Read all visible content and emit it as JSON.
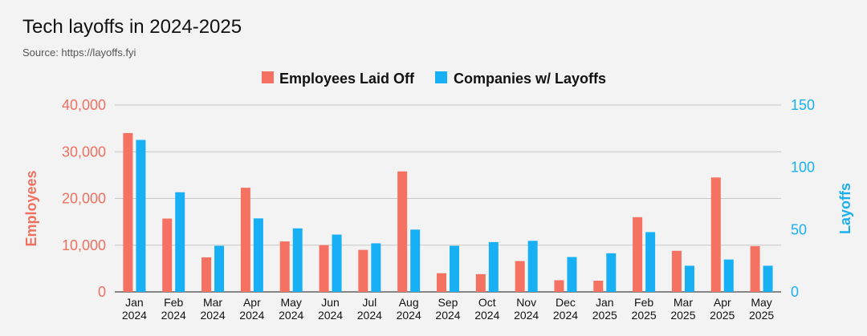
{
  "chart_data": {
    "type": "bar",
    "title": "Tech layoffs in 2024-2025",
    "subtitle": "Source: https://layoffs.fyi",
    "categories": [
      [
        "Jan",
        "2024"
      ],
      [
        "Feb",
        "2024"
      ],
      [
        "Mar",
        "2024"
      ],
      [
        "Apr",
        "2024"
      ],
      [
        "May",
        "2024"
      ],
      [
        "Jun",
        "2024"
      ],
      [
        "Jul",
        "2024"
      ],
      [
        "Aug",
        "2024"
      ],
      [
        "Sep",
        "2024"
      ],
      [
        "Oct",
        "2024"
      ],
      [
        "Nov",
        "2024"
      ],
      [
        "Dec",
        "2024"
      ],
      [
        "Jan",
        "2025"
      ],
      [
        "Feb",
        "2025"
      ],
      [
        "Mar",
        "2025"
      ],
      [
        "Apr",
        "2025"
      ],
      [
        "May",
        "2025"
      ]
    ],
    "series": [
      {
        "name": "Employees Laid Off",
        "axis": "left",
        "color": "#f57161",
        "values": [
          34000,
          15700,
          7400,
          22300,
          10800,
          10000,
          9000,
          25800,
          4000,
          3800,
          6600,
          2500,
          2400,
          16000,
          8800,
          24500,
          9800
        ]
      },
      {
        "name": "Companies w/ Layoffs",
        "axis": "right",
        "color": "#18b0f5",
        "values": [
          122,
          80,
          37,
          59,
          51,
          46,
          39,
          50,
          37,
          40,
          41,
          28,
          31,
          48,
          21,
          26,
          21
        ]
      }
    ],
    "ylabel": "Employees",
    "ylabel_right": "Layoffs",
    "ylim": [
      0,
      40000
    ],
    "ylim_right": [
      0,
      150
    ],
    "yticks_left": [
      "0",
      "10,000",
      "20,000",
      "30,000",
      "40,000"
    ],
    "yticks_right": [
      "0",
      "50",
      "100",
      "150"
    ],
    "grid": true,
    "legend_position": "top-center"
  }
}
